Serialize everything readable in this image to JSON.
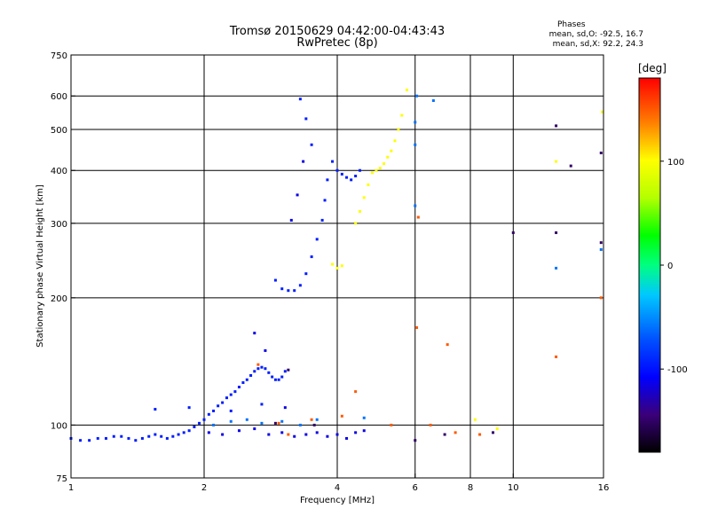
{
  "header": {
    "title_line1": "Tromsø 20150629 04:42:00-04:43:43",
    "title_line2": "RwPretec (8p)"
  },
  "stats": {
    "heading": "Phases",
    "line_O": "mean, sd,O: -92.5, 16.7",
    "line_X": "mean, sd,X:  92.2, 24.3"
  },
  "chart_data": {
    "type": "scatter",
    "xlabel": "Frequency [MHz]",
    "ylabel": "Stationary phase Virtual Height [km]",
    "x_scale": "log",
    "y_scale": "log",
    "xlim": [
      1,
      16
    ],
    "ylim": [
      75,
      750
    ],
    "x_ticks": [
      1,
      2,
      4,
      6,
      8,
      10,
      16
    ],
    "y_ticks": [
      75,
      100,
      200,
      300,
      400,
      500,
      600,
      750
    ],
    "x_gridlines": [
      2,
      4,
      6,
      8,
      10
    ],
    "y_gridlines": [
      100,
      200,
      300,
      400,
      500,
      600
    ],
    "colorbar": {
      "label": "[deg]",
      "range": [
        -180,
        180
      ],
      "ticks": [
        100,
        0,
        -100
      ],
      "colors": [
        "#000000",
        "#3a007a",
        "#0000ff",
        "#0050ff",
        "#00c8ff",
        "#00ff80",
        "#00ff00",
        "#b4ff00",
        "#ffff00",
        "#ff8000",
        "#ff0000"
      ]
    },
    "series": [
      {
        "phase": -95,
        "points": [
          [
            1.0,
            93
          ],
          [
            1.05,
            92
          ],
          [
            1.1,
            92
          ],
          [
            1.15,
            93
          ],
          [
            1.2,
            93
          ],
          [
            1.25,
            94
          ],
          [
            1.3,
            94
          ],
          [
            1.35,
            93
          ],
          [
            1.4,
            92
          ],
          [
            1.45,
            93
          ],
          [
            1.5,
            94
          ],
          [
            1.55,
            95
          ],
          [
            1.6,
            94
          ],
          [
            1.65,
            93
          ],
          [
            1.7,
            94
          ],
          [
            1.75,
            95
          ],
          [
            1.8,
            96
          ],
          [
            1.85,
            97
          ],
          [
            1.9,
            99
          ],
          [
            1.95,
            101
          ],
          [
            2.0,
            103
          ],
          [
            2.05,
            106
          ],
          [
            2.1,
            108
          ],
          [
            2.15,
            111
          ],
          [
            2.2,
            113
          ],
          [
            2.25,
            116
          ],
          [
            2.3,
            118
          ],
          [
            2.35,
            120
          ],
          [
            2.4,
            123
          ],
          [
            2.45,
            126
          ],
          [
            2.5,
            128
          ],
          [
            2.55,
            131
          ],
          [
            2.6,
            134
          ],
          [
            2.65,
            136
          ],
          [
            2.7,
            137
          ],
          [
            2.75,
            136
          ],
          [
            2.8,
            133
          ],
          [
            2.85,
            130
          ],
          [
            2.9,
            128
          ],
          [
            2.95,
            128
          ],
          [
            3.0,
            130
          ],
          [
            3.05,
            134
          ],
          [
            2.9,
            220
          ],
          [
            3.0,
            210
          ],
          [
            3.1,
            208
          ],
          [
            3.2,
            208
          ],
          [
            3.3,
            214
          ],
          [
            3.4,
            228
          ],
          [
            3.5,
            250
          ],
          [
            3.6,
            275
          ],
          [
            3.7,
            305
          ],
          [
            3.75,
            340
          ],
          [
            3.8,
            380
          ],
          [
            3.9,
            420
          ],
          [
            4.0,
            400
          ],
          [
            4.1,
            392
          ],
          [
            4.2,
            385
          ],
          [
            4.3,
            380
          ],
          [
            4.4,
            388
          ],
          [
            4.5,
            400
          ],
          [
            3.3,
            590
          ],
          [
            3.4,
            530
          ],
          [
            3.5,
            460
          ],
          [
            1.55,
            109
          ],
          [
            1.85,
            110
          ],
          [
            2.3,
            108
          ],
          [
            2.7,
            112
          ]
        ]
      },
      {
        "phase": -115,
        "points": [
          [
            2.05,
            96
          ],
          [
            2.2,
            95
          ],
          [
            2.4,
            97
          ],
          [
            2.6,
            98
          ],
          [
            2.8,
            95
          ],
          [
            3.0,
            96
          ],
          [
            3.2,
            94
          ],
          [
            3.4,
            95
          ],
          [
            3.6,
            96
          ],
          [
            3.8,
            94
          ],
          [
            4.0,
            95
          ],
          [
            4.2,
            93
          ],
          [
            4.4,
            96
          ],
          [
            4.6,
            97
          ],
          [
            3.05,
            110
          ],
          [
            2.75,
            150
          ],
          [
            2.6,
            165
          ],
          [
            3.15,
            305
          ],
          [
            3.25,
            350
          ],
          [
            3.35,
            420
          ]
        ]
      },
      {
        "phase": -60,
        "points": [
          [
            2.1,
            100
          ],
          [
            2.3,
            102
          ],
          [
            2.5,
            103
          ],
          [
            2.7,
            101
          ],
          [
            3.0,
            102
          ],
          [
            3.3,
            100
          ],
          [
            3.6,
            103
          ],
          [
            4.6,
            104
          ],
          [
            6.0,
            330
          ],
          [
            6.0,
            460
          ],
          [
            6.0,
            520
          ],
          [
            6.05,
            600
          ],
          [
            12.5,
            235
          ],
          [
            15.8,
            260
          ],
          [
            6.6,
            585
          ]
        ]
      },
      {
        "phase": 100,
        "points": [
          [
            4.4,
            300
          ],
          [
            4.5,
            320
          ],
          [
            4.6,
            345
          ],
          [
            4.7,
            370
          ],
          [
            4.8,
            395
          ],
          [
            4.9,
            400
          ],
          [
            5.0,
            405
          ],
          [
            5.1,
            415
          ],
          [
            5.2,
            430
          ],
          [
            5.3,
            445
          ],
          [
            5.4,
            470
          ],
          [
            5.5,
            500
          ],
          [
            5.6,
            540
          ],
          [
            5.75,
            620
          ],
          [
            3.9,
            240
          ],
          [
            4.0,
            235
          ],
          [
            4.1,
            238
          ],
          [
            8.2,
            103
          ],
          [
            9.2,
            98
          ],
          [
            12.5,
            420
          ],
          [
            15.9,
            550
          ]
        ]
      },
      {
        "phase": 150,
        "points": [
          [
            3.5,
            103
          ],
          [
            4.1,
            105
          ],
          [
            4.4,
            120
          ],
          [
            5.3,
            100
          ],
          [
            6.1,
            310
          ],
          [
            6.5,
            100
          ],
          [
            7.1,
            155
          ],
          [
            6.05,
            170
          ],
          [
            7.4,
            96
          ],
          [
            8.4,
            95
          ],
          [
            12.5,
            145
          ],
          [
            15.8,
            200
          ],
          [
            2.65,
            139
          ],
          [
            3.1,
            95
          ],
          [
            2.95,
            101
          ]
        ]
      },
      {
        "phase": -150,
        "points": [
          [
            3.1,
            135
          ],
          [
            2.9,
            101
          ],
          [
            6.0,
            92
          ],
          [
            7.0,
            95
          ],
          [
            9.0,
            96
          ],
          [
            10.0,
            285
          ],
          [
            12.5,
            510
          ],
          [
            13.5,
            410
          ],
          [
            15.8,
            440
          ],
          [
            15.8,
            270
          ],
          [
            12.5,
            285
          ],
          [
            3.55,
            100
          ]
        ]
      }
    ]
  }
}
